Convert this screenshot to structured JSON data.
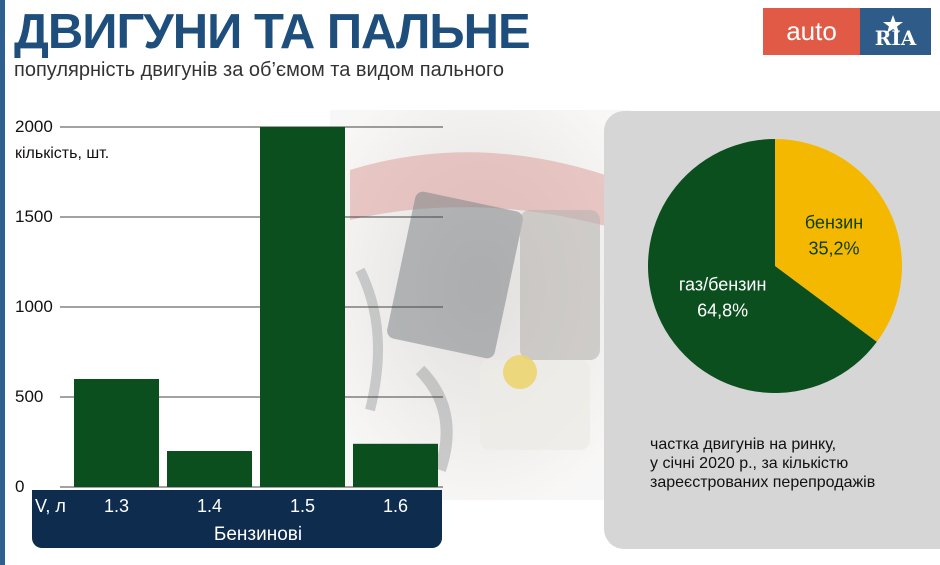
{
  "header": {
    "title": "ДВИГУНИ ТА ПАЛЬНЕ",
    "subtitle": "популярність двигунів за об’ємом та видом пального"
  },
  "logo": {
    "left_text": "auto",
    "right_text": "RIA"
  },
  "colors": {
    "bar": "#0b4f1f",
    "pie_gas": "#0b4f1f",
    "pie_petrol": "#f5b800",
    "title": "#1d4e7c",
    "axis_band": "#0d2c4e"
  },
  "chart_data": [
    {
      "type": "bar",
      "categories": [
        "1.3",
        "1.4",
        "1.5",
        "1.6"
      ],
      "values": [
        600,
        200,
        2000,
        240
      ],
      "ylabel": "кількість, шт.",
      "xlabel": "V, л",
      "group_label": "Бензинові",
      "ylim": [
        0,
        2000
      ],
      "yticks": [
        "0",
        "500",
        "1000",
        "1500",
        "2000"
      ],
      "grid": true
    },
    {
      "type": "pie",
      "slices": [
        {
          "label": "бензин",
          "value": 35.2,
          "display": "35,2%"
        },
        {
          "label": "газ/бензин",
          "value": 64.8,
          "display": "64,8%"
        }
      ],
      "note": [
        "частка двигунів на ринку,",
        "у січні 2020 р., за кількістю",
        "зареєстрованих перепродажів"
      ]
    }
  ]
}
